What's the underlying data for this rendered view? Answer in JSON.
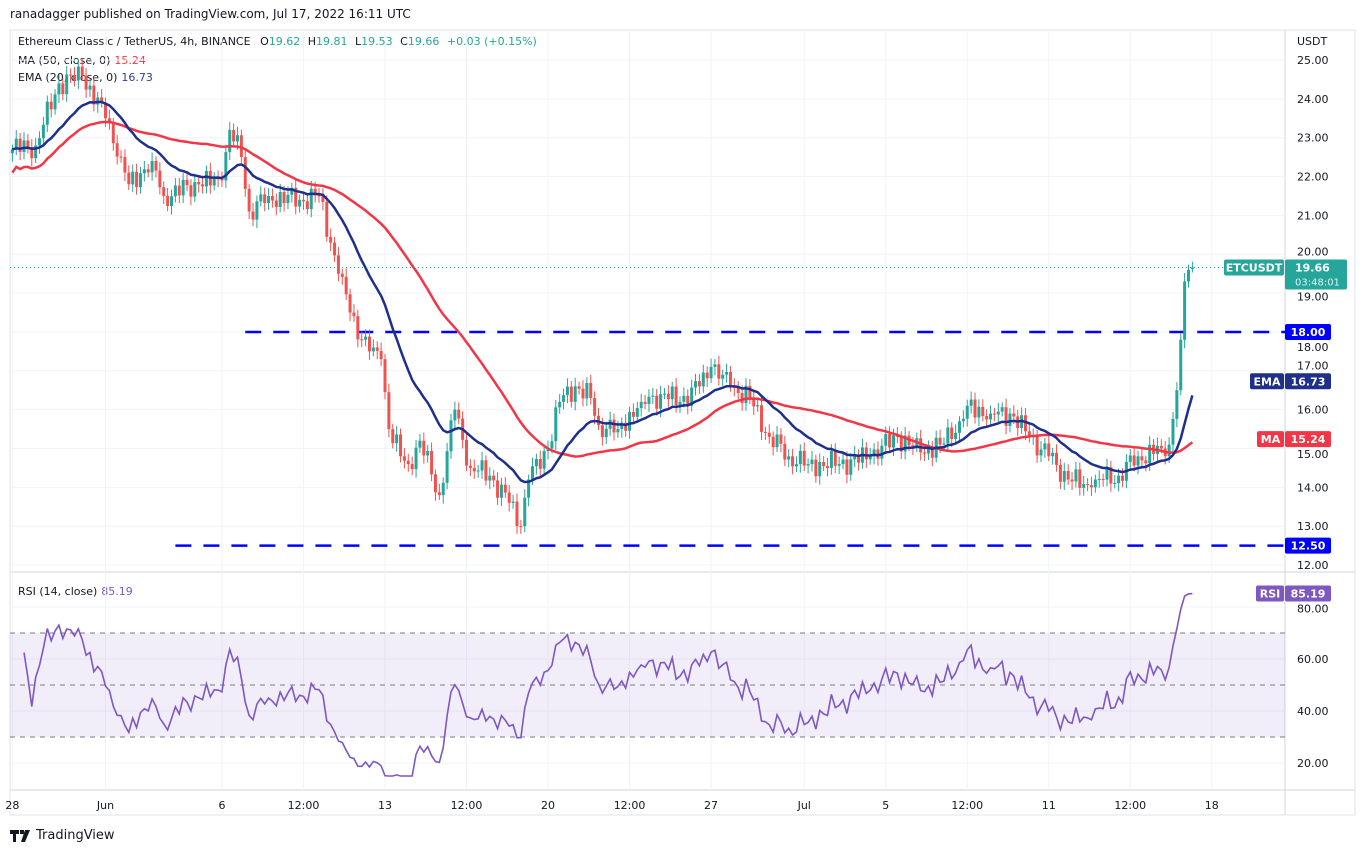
{
  "header": {
    "published": "ranadagger published on TradingView.com, Jul 17, 2022 16:11 UTC",
    "symbol": "Ethereum Classic / TetherUS, 4h, BINANCE",
    "ohlc": {
      "o_label": "O",
      "o": "19.62",
      "h_label": "H",
      "h": "19.81",
      "l_label": "L",
      "l": "19.53",
      "c_label": "C",
      "c": "19.66",
      "change": "+0.03 (+0.15%)"
    },
    "ma_label": "MA (50, close, 0)",
    "ma_value": "15.24",
    "ema_label": "EMA (20, close, 0)",
    "ema_value": "16.73",
    "rsi_label": "RSI (14, close)",
    "rsi_value": "85.19"
  },
  "footer": {
    "logo_text": "TradingView"
  },
  "colors": {
    "up": "#26a69a",
    "down": "#ef5350",
    "ma": "#f23645",
    "ema": "#1e2f8c",
    "rsi": "#7e57c2",
    "level": "#0000ff"
  },
  "chart_data": {
    "type": "candlestick",
    "symbol": "ETCUSDT",
    "currency": "USDT",
    "interval": "4h",
    "price_ylim": [
      11.5,
      25.5
    ],
    "price_ticks": [
      "25.00",
      "24.00",
      "23.00",
      "22.00",
      "21.00",
      "20.00",
      "19.00",
      "18.00",
      "17.00",
      "16.00",
      "15.00",
      "14.00",
      "13.00",
      "12.00"
    ],
    "rsi_ylim": [
      10,
      95
    ],
    "rsi_ticks": [
      "80.00",
      "60.00",
      "40.00",
      "20.00"
    ],
    "rsi_bands": [
      30,
      50,
      70
    ],
    "x_ticks": [
      {
        "label": "28",
        "t": "2022-05-28T00"
      },
      {
        "label": "Jun",
        "t": "2022-06-01T00"
      },
      {
        "label": "6",
        "t": "2022-06-06T00"
      },
      {
        "label": "12:00",
        "t": "2022-06-09T12"
      },
      {
        "label": "13",
        "t": "2022-06-13T00"
      },
      {
        "label": "12:00",
        "t": "2022-06-16T12"
      },
      {
        "label": "20",
        "t": "2022-06-20T00"
      },
      {
        "label": "12:00",
        "t": "2022-06-23T12"
      },
      {
        "label": "27",
        "t": "2022-06-27T00"
      },
      {
        "label": "Jul",
        "t": "2022-07-01T00"
      },
      {
        "label": "5",
        "t": "2022-07-04T12"
      },
      {
        "label": "12:00",
        "t": "2022-07-08T00"
      },
      {
        "label": "11",
        "t": "2022-07-11T12"
      },
      {
        "label": "12:00",
        "t": "2022-07-15T00"
      },
      {
        "label": "18",
        "t": "2022-07-18T12"
      }
    ],
    "levels": [
      {
        "value": 18.0,
        "label": "18.00",
        "from": "2022-06-07T00"
      },
      {
        "value": 12.5,
        "label": "12.50",
        "from": "2022-06-04T00"
      }
    ],
    "last": {
      "label": "ETCUSDT",
      "price": "19.66",
      "countdown": "03:48:01",
      "value": 19.66
    },
    "ma_badge": {
      "label": "MA",
      "value": "15.24",
      "y": 15.24
    },
    "ema_badge": {
      "label": "EMA",
      "value": "16.73",
      "y": 16.73
    },
    "rsi_badge": {
      "label": "RSI",
      "value": "85.19",
      "y": 85.19
    },
    "close_path": [
      [
        "2022-05-28T00",
        22.7
      ],
      [
        "2022-05-29T00",
        22.8
      ],
      [
        "2022-05-30T00",
        24.4
      ],
      [
        "2022-05-31T00",
        24.6
      ],
      [
        "2022-06-01T00",
        23.5
      ],
      [
        "2022-06-01T16",
        22.5
      ],
      [
        "2022-06-02T00",
        21.8
      ],
      [
        "2022-06-03T00",
        22.4
      ],
      [
        "2022-06-03T12",
        21.5
      ],
      [
        "2022-06-05T00",
        21.8
      ],
      [
        "2022-06-06T00",
        21.9
      ],
      [
        "2022-06-06T08",
        23.2
      ],
      [
        "2022-06-06T20",
        22.5
      ],
      [
        "2022-06-07T04",
        21.1
      ],
      [
        "2022-06-08T00",
        21.5
      ],
      [
        "2022-06-09T08",
        21.4
      ],
      [
        "2022-06-10T04",
        21.5
      ],
      [
        "2022-06-10T16",
        20.3
      ],
      [
        "2022-06-11T00",
        19.5
      ],
      [
        "2022-06-11T12",
        18.5
      ],
      [
        "2022-06-12T00",
        17.8
      ],
      [
        "2022-06-12T08",
        17.5
      ],
      [
        "2022-06-12T20",
        17.3
      ],
      [
        "2022-06-13T04",
        15.5
      ],
      [
        "2022-06-13T16",
        14.8
      ],
      [
        "2022-06-14T00",
        14.6
      ],
      [
        "2022-06-14T12",
        15.2
      ],
      [
        "2022-06-15T08",
        13.8
      ],
      [
        "2022-06-16T00",
        16.0
      ],
      [
        "2022-06-16T16",
        14.5
      ],
      [
        "2022-06-17T12",
        14.3
      ],
      [
        "2022-06-18T08",
        13.6
      ],
      [
        "2022-06-18T20",
        13.0
      ],
      [
        "2022-06-19T04",
        14.2
      ],
      [
        "2022-06-20T00",
        15.0
      ],
      [
        "2022-06-20T12",
        16.2
      ],
      [
        "2022-06-21T04",
        16.6
      ],
      [
        "2022-06-21T20",
        16.3
      ],
      [
        "2022-06-22T04",
        15.6
      ],
      [
        "2022-06-23T00",
        15.5
      ],
      [
        "2022-06-24T00",
        16.2
      ],
      [
        "2022-06-24T20",
        16.4
      ],
      [
        "2022-06-25T16",
        16.2
      ],
      [
        "2022-06-26T12",
        16.6
      ],
      [
        "2022-06-27T00",
        17.1
      ],
      [
        "2022-06-27T20",
        16.6
      ],
      [
        "2022-06-28T16",
        16.3
      ],
      [
        "2022-06-29T12",
        15.3
      ],
      [
        "2022-06-30T08",
        14.8
      ],
      [
        "2022-07-01T04",
        14.6
      ],
      [
        "2022-07-02T12",
        14.6
      ],
      [
        "2022-07-03T20",
        14.8
      ],
      [
        "2022-07-05T00",
        15.3
      ],
      [
        "2022-07-06T00",
        14.9
      ],
      [
        "2022-07-06T20",
        15.1
      ],
      [
        "2022-07-07T16",
        15.7
      ],
      [
        "2022-07-08T00",
        16.1
      ],
      [
        "2022-07-09T00",
        15.9
      ],
      [
        "2022-07-09T20",
        15.9
      ],
      [
        "2022-07-10T16",
        15.3
      ],
      [
        "2022-07-11T12",
        14.8
      ],
      [
        "2022-07-12T08",
        14.2
      ],
      [
        "2022-07-13T08",
        14.0
      ],
      [
        "2022-07-13T20",
        14.2
      ],
      [
        "2022-07-14T12",
        14.3
      ],
      [
        "2022-07-15T08",
        14.8
      ],
      [
        "2022-07-16T08",
        15.0
      ],
      [
        "2022-07-16T16",
        15.1
      ],
      [
        "2022-07-17T00",
        16.5
      ],
      [
        "2022-07-17T04",
        17.8
      ],
      [
        "2022-07-17T08",
        19.3
      ],
      [
        "2022-07-17T12",
        19.6
      ],
      [
        "2022-07-17T16",
        19.66
      ]
    ]
  }
}
